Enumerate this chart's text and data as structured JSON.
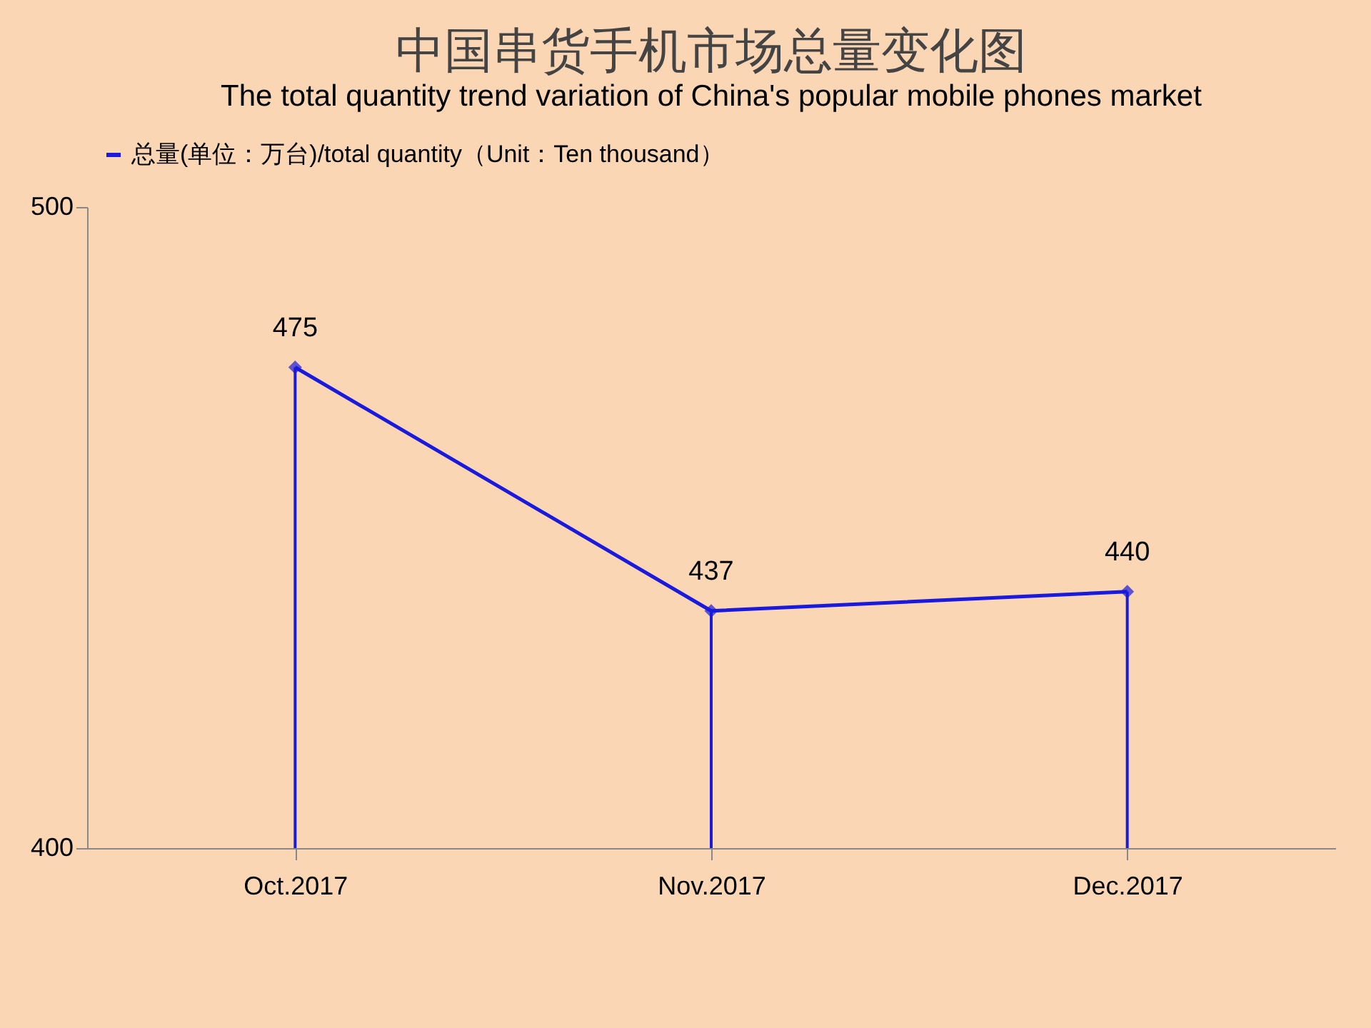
{
  "chart_data": {
    "type": "line",
    "title": "中国串货手机市场总量变化图",
    "subtitle": "The total quantity trend variation of China's popular mobile phones market",
    "categories": [
      "Oct.2017",
      "Nov.2017",
      "Dec.2017"
    ],
    "series": [
      {
        "name": "总量(单位：万台)/total quantity（Unit：Ten thousand）",
        "color": "#1a1adc",
        "values": [
          475,
          437,
          440
        ]
      }
    ],
    "ylim": [
      400,
      500
    ],
    "yticks": [
      400,
      500
    ],
    "grid": false,
    "legend": "top",
    "marker": "diamond",
    "line_style": "solid",
    "data_labels": true
  }
}
